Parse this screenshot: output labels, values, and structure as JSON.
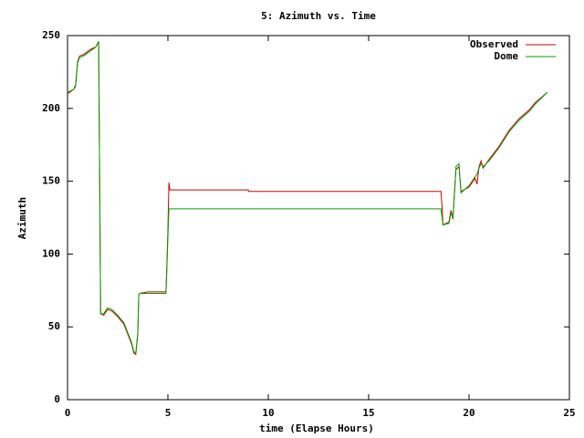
{
  "chart_data": {
    "type": "line",
    "title": "5: Azimuth vs. Time",
    "x_label": "time (Elapse Hours)",
    "y_label": "Azimuth",
    "xlim": [
      0,
      25
    ],
    "xticks": [
      0,
      5,
      10,
      15,
      20,
      25
    ],
    "ylim": [
      0,
      250
    ],
    "yticks": [
      0,
      50,
      100,
      150,
      200,
      250
    ],
    "legend": "top-right",
    "grid": false,
    "series": [
      {
        "name": "Observed",
        "color": "#cc0000",
        "x": [
          0,
          0.3,
          0.4,
          0.5,
          0.6,
          0.8,
          1.0,
          1.2,
          1.4,
          1.55,
          1.6,
          1.65,
          1.8,
          2.0,
          2.2,
          2.5,
          2.8,
          3.0,
          3.2,
          3.3,
          3.4,
          3.5,
          3.55,
          3.6,
          4.0,
          4.5,
          4.9,
          4.95,
          5.0,
          5.05,
          5.1,
          9.0,
          9.01,
          18.6,
          18.65,
          18.7,
          19.0,
          19.1,
          19.2,
          19.3,
          19.35,
          19.5,
          19.6,
          20.0,
          20.3,
          20.4,
          20.5,
          20.6,
          20.7,
          21.0,
          21.5,
          22.0,
          22.5,
          23.0,
          23.3,
          23.9
        ],
        "values": [
          210,
          213,
          216,
          232,
          236,
          237,
          239,
          241,
          242,
          246,
          153,
          59,
          58,
          62,
          61,
          57,
          52,
          45,
          38,
          32,
          31,
          45,
          72,
          73,
          74,
          74,
          74,
          93,
          117,
          149,
          144,
          144,
          143,
          143,
          134,
          120,
          122,
          130,
          124,
          148,
          158,
          160,
          143,
          146,
          152,
          148,
          160,
          164,
          159,
          165,
          174,
          185,
          193,
          199,
          204,
          211
        ]
      },
      {
        "name": "Dome",
        "color": "#00a000",
        "x": [
          0,
          0.3,
          0.4,
          0.5,
          0.6,
          0.8,
          1.0,
          1.2,
          1.4,
          1.55,
          1.6,
          1.65,
          1.8,
          2.0,
          2.2,
          2.5,
          2.8,
          3.0,
          3.2,
          3.3,
          3.4,
          3.5,
          3.55,
          3.6,
          4.0,
          4.5,
          4.9,
          4.95,
          5.0,
          5.05,
          5.1,
          18.6,
          18.65,
          18.7,
          19.0,
          19.1,
          19.2,
          19.3,
          19.35,
          19.5,
          19.6,
          20.0,
          20.3,
          20.4,
          20.5,
          20.6,
          20.7,
          21.0,
          21.5,
          22.0,
          22.5,
          23.0,
          23.3,
          23.9
        ],
        "values": [
          211,
          213,
          215,
          231,
          235,
          236,
          238,
          240,
          242,
          246,
          153,
          59,
          59,
          63,
          62,
          58,
          53,
          46,
          39,
          33,
          32,
          46,
          72,
          73,
          73,
          73,
          73,
          90,
          112,
          131,
          131,
          131,
          126,
          120,
          121,
          128,
          125,
          147,
          160,
          162,
          142,
          147,
          153,
          155,
          159,
          162,
          160,
          164,
          173,
          184,
          192,
          198,
          203,
          211
        ]
      }
    ]
  }
}
